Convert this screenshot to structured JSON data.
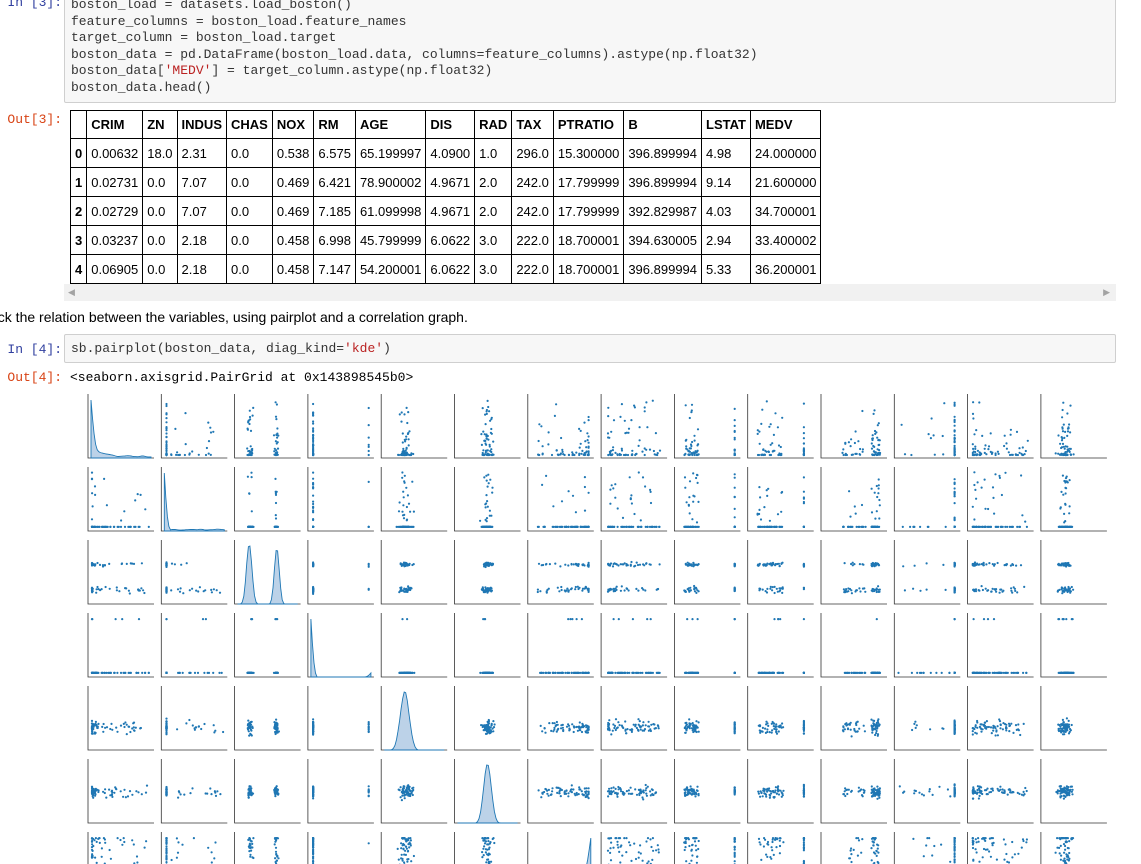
{
  "cell3": {
    "in_prompt": "In [3]:",
    "code_lines": [
      [
        {
          "t": "boston_load = datasets.load_boston()",
          "c": ""
        }
      ],
      [
        {
          "t": "feature_columns = boston_load.feature_names",
          "c": ""
        }
      ],
      [
        {
          "t": "target_column = boston_load.target",
          "c": ""
        }
      ],
      [
        {
          "t": "boston_data = pd.DataFrame(boston_load.data, columns=feature_columns).astype(np.float32)",
          "c": ""
        }
      ],
      [
        {
          "t": "boston_data[",
          "c": ""
        },
        {
          "t": "'MEDV'",
          "c": "str"
        },
        {
          "t": "] = target_column.astype(np.float32)",
          "c": ""
        }
      ],
      [
        {
          "t": "boston_data.head()",
          "c": ""
        }
      ]
    ],
    "out_prompt": "Out[3]:",
    "table": {
      "columns": [
        "",
        "CRIM",
        "ZN",
        "INDUS",
        "CHAS",
        "NOX",
        "RM",
        "AGE",
        "DIS",
        "RAD",
        "TAX",
        "PTRATIO",
        "B",
        "LSTAT",
        "MEDV"
      ],
      "rows": [
        [
          "0",
          "0.00632",
          "18.0",
          "2.31",
          "0.0",
          "0.538",
          "6.575",
          "65.199997",
          "4.0900",
          "1.0",
          "296.0",
          "15.300000",
          "396.899994",
          "4.98",
          "24.000000"
        ],
        [
          "1",
          "0.02731",
          "0.0",
          "7.07",
          "0.0",
          "0.469",
          "6.421",
          "78.900002",
          "4.9671",
          "2.0",
          "242.0",
          "17.799999",
          "396.899994",
          "9.14",
          "21.600000"
        ],
        [
          "2",
          "0.02729",
          "0.0",
          "7.07",
          "0.0",
          "0.469",
          "7.185",
          "61.099998",
          "4.9671",
          "2.0",
          "242.0",
          "17.799999",
          "392.829987",
          "4.03",
          "34.700001"
        ],
        [
          "3",
          "0.03237",
          "0.0",
          "2.18",
          "0.0",
          "0.458",
          "6.998",
          "45.799999",
          "6.0622",
          "3.0",
          "222.0",
          "18.700001",
          "394.630005",
          "2.94",
          "33.400002"
        ],
        [
          "4",
          "0.06905",
          "0.0",
          "2.18",
          "0.0",
          "0.458",
          "7.147",
          "54.200001",
          "6.0622",
          "3.0",
          "222.0",
          "18.700001",
          "396.899994",
          "5.33",
          "36.200001"
        ]
      ]
    },
    "scroll_left_icon": "triangle-left-icon",
    "scroll_right_icon": "triangle-right-icon"
  },
  "markdown": {
    "text": "eck the relation between the variables, using pairplot and a correlation graph."
  },
  "cell4": {
    "in_prompt": "In [4]:",
    "code_lines": [
      [
        {
          "t": "sb.pairplot(boston_data, diag_kind=",
          "c": ""
        },
        {
          "t": "'kde'",
          "c": "str"
        },
        {
          "t": ")",
          "c": ""
        }
      ]
    ],
    "out_prompt": "Out[4]:",
    "output_text": "<seaborn.axisgrid.PairGrid at 0x143898545b0>"
  },
  "colors": {
    "in_prompt": "#303f9f",
    "out_prompt": "#d84315",
    "point": "#1f77b4",
    "kde_fill": "#bcd2e8",
    "string_literal": "#ba2121"
  }
}
